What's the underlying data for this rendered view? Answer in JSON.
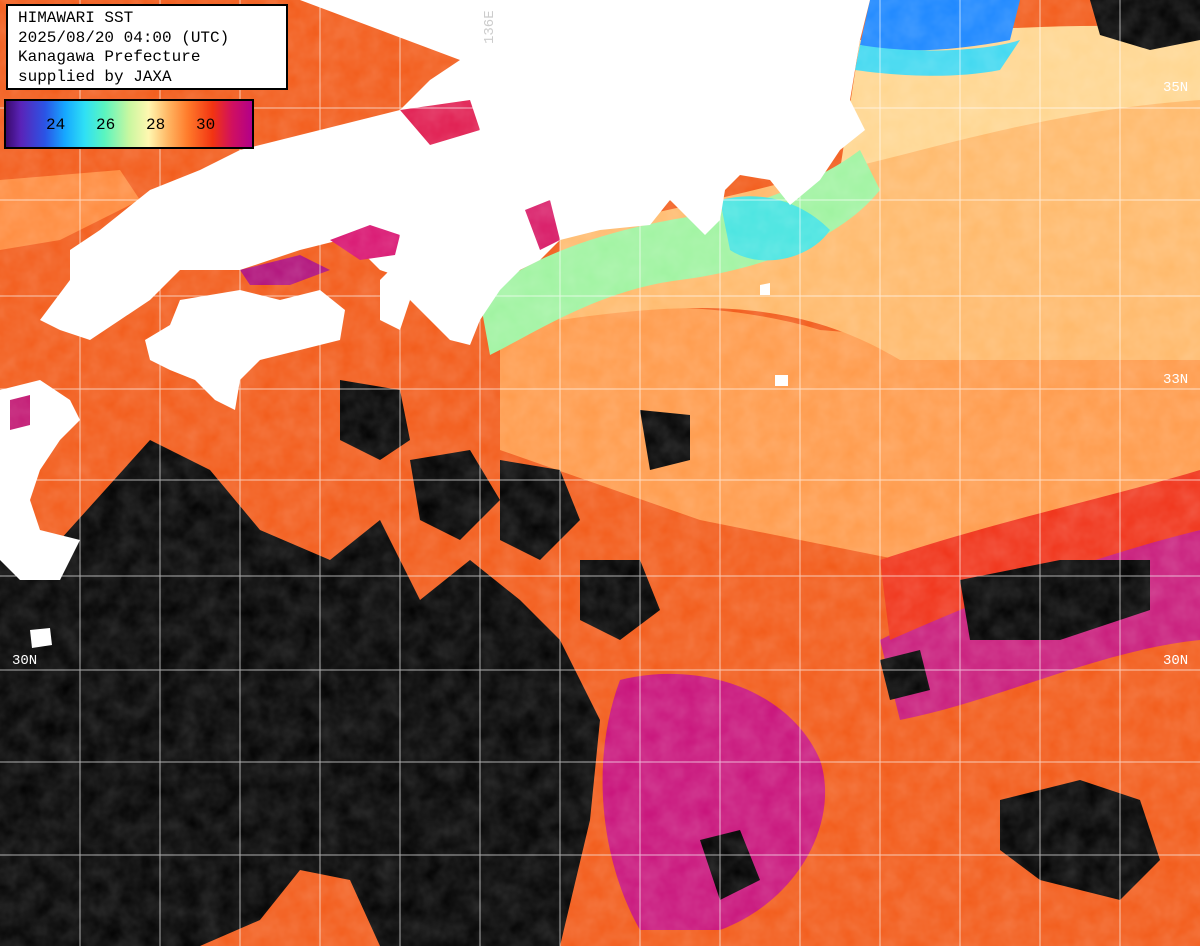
{
  "info": {
    "line1": "HIMAWARI SST",
    "line2": "2025/08/20 04:00 (UTC)",
    "line3": "Kanagawa Prefecture",
    "line4": "supplied by JAXA"
  },
  "legend": {
    "ticks": [
      "24",
      "26",
      "28",
      "30"
    ]
  },
  "grid_labels": {
    "lon_136": "136E",
    "lat_35": "35N",
    "lat_33": "33N",
    "lat_30_left": "30N",
    "lat_30_right": "30N"
  },
  "colors": {
    "land": "#ffffff",
    "cloud_no_data": "#000000",
    "grid": "#ffffff"
  }
}
